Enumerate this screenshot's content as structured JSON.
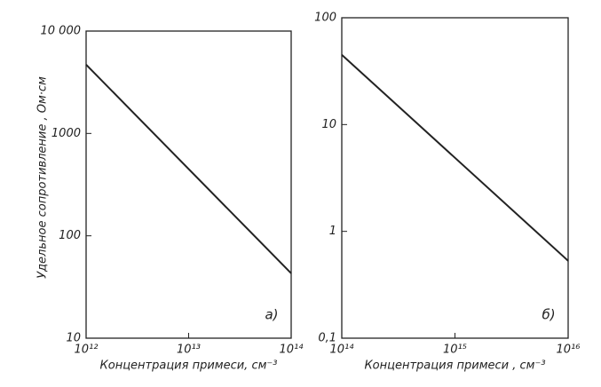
{
  "chart_data": [
    {
      "type": "line",
      "ylabel": "Удельное сопротивление , Ом·см",
      "xlabel": "Концентрация примеси, см⁻³",
      "annotation": "а)",
      "xlog": true,
      "ylog": true,
      "xlim": [
        1000000000000.0,
        100000000000000.0
      ],
      "ylim": [
        10,
        10000
      ],
      "xticks": [
        {
          "value": 1000000000000.0,
          "label": "10¹²"
        },
        {
          "value": 10000000000000.0,
          "label": "10¹³"
        },
        {
          "value": 100000000000000.0,
          "label": "10¹⁴"
        }
      ],
      "yticks": [
        {
          "value": 10000,
          "label": "10 000"
        },
        1000,
        100,
        10
      ],
      "x": [
        1000000000000.0,
        100000000000000.0
      ],
      "series": [
        {
          "color": "#222222",
          "values": [
            4700,
            43
          ]
        }
      ]
    },
    {
      "type": "line",
      "xlabel": "Концентрация примеси , см⁻³",
      "annotation": "б)",
      "xlog": true,
      "ylog": true,
      "xlim": [
        100000000000000.0,
        1e+16
      ],
      "ylim": [
        0.1,
        100
      ],
      "xticks": [
        {
          "value": 100000000000000.0,
          "label": "10¹⁴"
        },
        {
          "value": 1000000000000000.0,
          "label": "10¹⁵"
        },
        {
          "value": 1e+16,
          "label": "10¹⁶"
        }
      ],
      "yticks": [
        100,
        10,
        1,
        {
          "value": 0.1,
          "label": "0,1"
        }
      ],
      "x": [
        100000000000000.0,
        1e+16
      ],
      "series": [
        {
          "color": "#222222",
          "values": [
            45,
            0.53
          ]
        }
      ]
    }
  ]
}
